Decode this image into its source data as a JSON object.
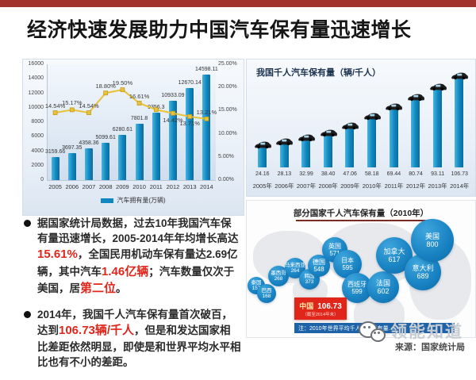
{
  "page": {
    "title": "经济快速发展助力中国汽车保有量迅速增长"
  },
  "colors": {
    "top_bar": "#a2342e",
    "bar_teal": "#1187bf",
    "line_yellow": "#e8c23a",
    "highlight_red": "#e0251b",
    "bubble_blue": "#1a84c4",
    "china_box_red": "#e8352a",
    "note_bar_blue": "#1e63a8"
  },
  "chart_data": [
    {
      "name": "china-car-ownership-and-growth",
      "type": "bar",
      "categories": [
        "2005",
        "2006",
        "2007",
        "2008",
        "2009",
        "2010",
        "2011",
        "2012",
        "2013",
        "2014"
      ],
      "series": [
        {
          "name": "汽车拥有量(万辆)",
          "type": "bar",
          "axis": "left",
          "values": [
            3159.66,
            3697.35,
            4358.36,
            5099.61,
            6280.61,
            7801.8,
            9356.3,
            10933.09,
            12670.14,
            14598.11
          ],
          "labels": [
            "3159.66",
            "3697.35",
            "4358.36",
            "5099.61",
            "6280.61",
            "7801.8",
            "9356.3",
            "10933.09",
            "12670.14",
            "14598.11"
          ]
        },
        {
          "name": "增长率",
          "type": "line",
          "axis": "right",
          "values": [
            14.54,
            15.17,
            14.54,
            18.8,
            19.5,
            16.61,
            15.2,
            14.42,
            13.71,
            13.21
          ],
          "labels": [
            "14.54%",
            "15.17%",
            "14.54%",
            "18.80%",
            "19.50%",
            "16.61%",
            "",
            "14.42%",
            "13.71%",
            "13.21%"
          ]
        }
      ],
      "ylim": [
        0,
        16000
      ],
      "yticks": [
        "16000",
        "14000",
        "12000",
        "10000",
        "8000",
        "6000",
        "4000",
        "2000",
        "0"
      ],
      "y2lim": [
        0,
        25
      ],
      "y2ticks": [
        "25.00%",
        "20.00%",
        "15.00%",
        "10.00%",
        "5.00%",
        "0.00%"
      ],
      "legend": [
        "汽车拥有量(万辆)"
      ],
      "legend_position": "bottom",
      "grid": false
    },
    {
      "name": "china-cars-per-1000-people",
      "type": "bar",
      "title": "我国千人汽车保有量（辆/千人）",
      "categories": [
        "2005年",
        "2006年",
        "2007年",
        "2008年",
        "2009年",
        "2010年",
        "2011年",
        "2012年",
        "2013年",
        "2014年"
      ],
      "values": [
        24.16,
        28.13,
        32.99,
        38.4,
        47.06,
        58.18,
        69.44,
        80.74,
        93.11,
        106.73
      ],
      "labels": [
        "24.16",
        "28.13",
        "32.99",
        "38.40",
        "47.06",
        "58.18",
        "69.44",
        "80.74",
        "93.11",
        "106.73"
      ],
      "ylim": [
        0,
        115
      ],
      "grid": false
    },
    {
      "name": "countries-cars-per-1000-2010",
      "type": "bubble",
      "title": "部分国家千人汽车保有量（2010年）",
      "points": [
        {
          "label": "泰国",
          "value": 157
        },
        {
          "label": "巴西",
          "value": 168
        },
        {
          "label": "墨西哥",
          "value": 268
        },
        {
          "label": "马来西亚",
          "value": 264
        },
        {
          "label": "韩国",
          "value": 373
        },
        {
          "label": "德国",
          "value": 548
        },
        {
          "label": "英国",
          "value": 571
        },
        {
          "label": "日本",
          "value": 595
        },
        {
          "label": "西班牙",
          "value": 599
        },
        {
          "label": "法国",
          "value": 602
        },
        {
          "label": "加拿大",
          "value": 617
        },
        {
          "label": "意大利",
          "value": 689
        },
        {
          "label": "美国",
          "value": 800
        }
      ],
      "highlight": {
        "label": "中国",
        "value": "106.73",
        "sub": "（截至2014年末）"
      },
      "note": "注：2010年世界平均千人汽车保有量…"
    }
  ],
  "bullets": [
    {
      "segments": [
        {
          "t": "据国家统计局数据，过去10年我国汽车保有量迅速增长，2005-2014年年均增长高达"
        },
        {
          "t": "15.61%",
          "hl": true
        },
        {
          "t": "，全国民用机动车保有量达2.69亿辆，其中汽车"
        },
        {
          "t": "1.46亿辆",
          "hl": true
        },
        {
          "t": "；汽车数量仅次于美国，居"
        },
        {
          "t": "第二位",
          "hl": true
        },
        {
          "t": "。"
        }
      ]
    },
    {
      "segments": [
        {
          "t": "2014年，我国千人汽车保有量首次破百，达到"
        },
        {
          "t": "106.73辆/千人",
          "hl": true
        },
        {
          "t": "，但是和发达国家相比差距依然明显，即使是和世界平均水平相比也有不小的差距。"
        }
      ]
    }
  ],
  "watermark": {
    "text": "领能知道",
    "icon": "wechat-icon"
  },
  "source": "来源：国家统计局"
}
